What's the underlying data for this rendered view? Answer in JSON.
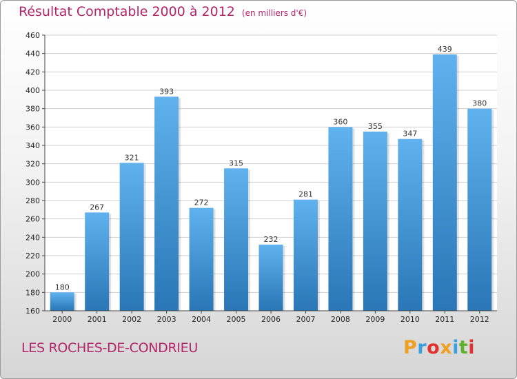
{
  "header": {
    "title": "Résultat Comptable 2000 à 2012",
    "subtitle": "(en milliers d'€)"
  },
  "footer": {
    "place": "LES ROCHES-DE-CONDRIEU",
    "logo_letters": [
      "P",
      "r",
      "o",
      "x",
      "i",
      "t",
      "i"
    ],
    "logo_colors": [
      "#f0a020",
      "#3aa0e0",
      "#e03030",
      "#f0a020",
      "#3aa0e0",
      "#60b030",
      "#e03030"
    ]
  },
  "colors": {
    "title": "#b4246a",
    "bar_light": "#5aaeea",
    "bar_dark": "#2a78b8",
    "grid": "#cfcfcf"
  },
  "chart_data": {
    "type": "bar",
    "title": "Résultat Comptable 2000 à 2012",
    "subtitle": "(en milliers d'€)",
    "categories": [
      "2000",
      "2001",
      "2002",
      "2003",
      "2004",
      "2005",
      "2006",
      "2007",
      "2008",
      "2009",
      "2010",
      "2011",
      "2012"
    ],
    "values": [
      180,
      267,
      321,
      393,
      272,
      315,
      232,
      281,
      360,
      355,
      347,
      439,
      380
    ],
    "ylim": [
      160,
      460
    ],
    "yticks": [
      160,
      180,
      200,
      220,
      240,
      260,
      280,
      300,
      320,
      340,
      360,
      380,
      400,
      420,
      440,
      460
    ],
    "grid": true
  }
}
